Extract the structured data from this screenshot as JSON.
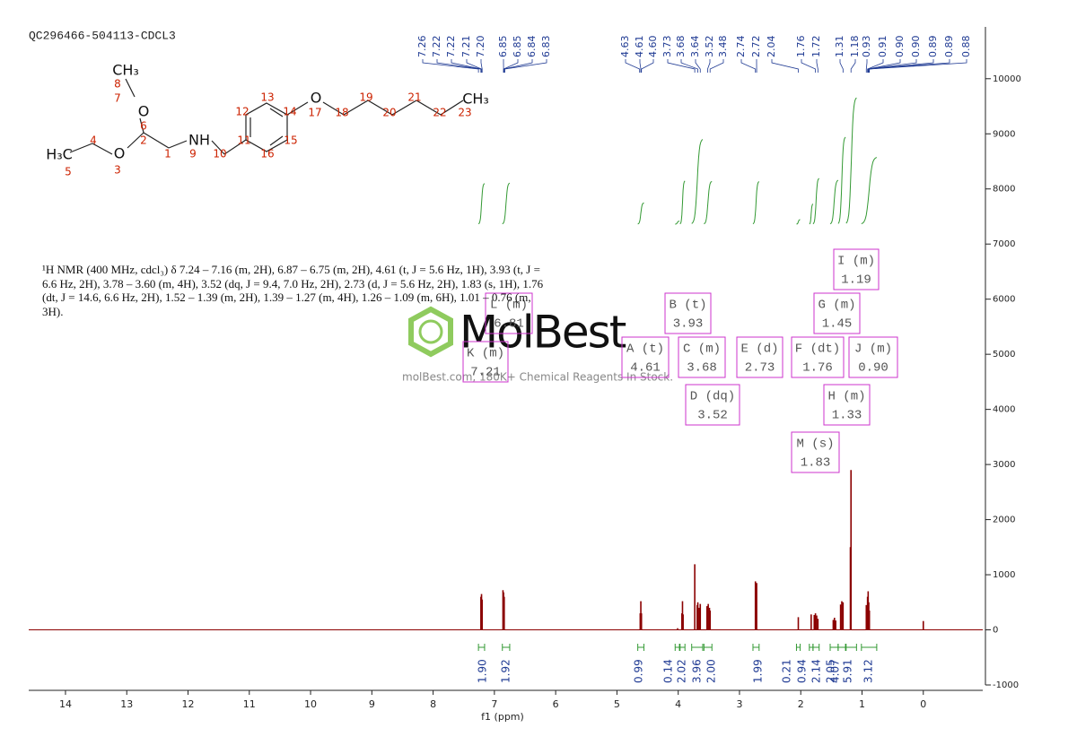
{
  "chart_data": {
    "type": "spectrum",
    "title": "QC296466-504113-CDCL3",
    "x_label": "f1 (ppm)",
    "xlim": [
      14.6,
      -0.97
    ],
    "xticks": [
      14,
      13,
      12,
      11,
      10,
      9,
      8,
      7,
      6,
      5,
      4,
      3,
      2,
      1,
      0
    ],
    "ylim": [
      -1000,
      10940
    ],
    "yticks": [
      -1000,
      0,
      1000,
      2000,
      3000,
      4000,
      5000,
      6000,
      7000,
      8000,
      9000,
      10000
    ],
    "color": "#8b0000",
    "integral_color": "#339933",
    "box_color": "#cc33cc",
    "peaks": {
      "x": [
        7.22,
        7.21,
        7.2,
        6.86,
        6.85,
        6.84,
        4.62,
        4.61,
        4.6,
        4.01,
        3.94,
        3.93,
        3.92,
        3.73,
        3.69,
        3.68,
        3.66,
        3.64,
        3.53,
        3.51,
        3.49,
        3.48,
        2.74,
        2.72,
        2.04,
        1.83,
        1.78,
        1.76,
        1.74,
        1.72,
        1.47,
        1.45,
        1.43,
        1.35,
        1.33,
        1.31,
        1.19,
        1.18,
        0.93,
        0.91,
        0.9,
        0.89,
        0.88,
        0.0
      ],
      "values": [
        600,
        650,
        550,
        720,
        680,
        600,
        300,
        520,
        300,
        30,
        300,
        520,
        280,
        1190,
        450,
        500,
        400,
        470,
        430,
        470,
        400,
        350,
        880,
        850,
        230,
        280,
        270,
        300,
        260,
        200,
        180,
        220,
        170,
        460,
        520,
        500,
        1500,
        2900,
        450,
        600,
        700,
        500,
        350,
        160
      ]
    },
    "peak_labels": [
      7.26,
      7.22,
      7.22,
      7.21,
      {
        "value": 7.2,
        "label": "7.20"
      },
      6.85,
      6.85,
      6.84,
      6.83,
      4.63,
      4.61,
      {
        "value": 4.6,
        "label": "4.60"
      },
      3.73,
      3.68,
      3.64,
      3.52,
      3.48,
      2.74,
      2.72,
      2.04,
      1.76,
      1.72,
      1.31,
      1.18,
      0.93,
      0.91,
      {
        "value": 0.9,
        "label": "0.90"
      },
      {
        "value": 0.9,
        "label": "0.90"
      },
      0.89,
      0.89,
      0.88
    ],
    "integrals": {
      "ranges": [
        [
          7.26,
          7.16
        ],
        [
          6.87,
          6.75
        ],
        [
          4.66,
          4.56
        ],
        [
          4.05,
          3.98
        ],
        [
          3.97,
          3.89
        ],
        [
          3.78,
          3.6
        ],
        [
          3.58,
          3.45
        ],
        [
          2.78,
          2.68
        ],
        [
          2.07,
          2.01
        ],
        [
          1.86,
          1.8
        ],
        [
          1.8,
          1.7
        ],
        [
          1.52,
          1.39
        ],
        [
          1.39,
          1.27
        ],
        [
          1.26,
          1.09
        ],
        [
          1.01,
          0.76
        ]
      ],
      "values": [
        1.9,
        1.92,
        0.99,
        0.14,
        2.02,
        3.96,
        2,
        1.99,
        0.21,
        0.94,
        2.14,
        2.05,
        4.07,
        5.91,
        3.12
      ],
      "value_labels": [
        "1.90",
        "1.92",
        "0.99",
        "0.14",
        "2.02",
        "3.96",
        "2.00",
        "1.99",
        "0.21",
        "0.94",
        "2.14",
        "2.05",
        "4.07",
        "5.91",
        "3.12"
      ]
    },
    "multiplets": [
      {
        "name": "K (m)",
        "shift": "7.21"
      },
      {
        "name": "L (m)",
        "shift": "6.81"
      },
      {
        "name": "A (t)",
        "shift": "4.61"
      },
      {
        "name": "B (t)",
        "shift": "3.93"
      },
      {
        "name": "C (m)",
        "shift": "3.68"
      },
      {
        "name": "D (dq)",
        "shift": "3.52"
      },
      {
        "name": "E (d)",
        "shift": "2.73"
      },
      {
        "name": "F (dt)",
        "shift": "1.76"
      },
      {
        "name": "G (m)",
        "shift": "1.45"
      },
      {
        "name": "H (m)",
        "shift": "1.33"
      },
      {
        "name": "I (m)",
        "shift": "1.19"
      },
      {
        "name": "J (m)",
        "shift": "0.90"
      },
      {
        "name": "M (s)",
        "shift": "1.83"
      }
    ],
    "description": "¹H NMR (400 MHz, cdcl₃) δ 7.24 – 7.16 (m, 2H), 6.87 – 6.75 (m, 2H), 4.61 (t, J = 5.6 Hz, 1H), 3.93 (t, J = 6.6 Hz, 2H), 3.78 – 3.60 (m, 4H), 3.52 (dq, J = 9.4, 7.0 Hz, 2H), 2.73 (d, J = 5.6 Hz, 2H), 1.83 (s, 1H), 1.76 (dt, J = 14.6, 6.6 Hz, 2H), 1.52 – 1.39 (m, 2H), 1.39 – 1.27 (m, 4H), 1.26 – 1.09 (m, 6H), 1.01 – 0.76 (m, 3H).",
    "structure": {
      "atoms": [
        "CH₃",
        "O",
        "O",
        "H₃C",
        "NH",
        "O",
        "CH₃"
      ],
      "numbers": [
        "1",
        "2",
        "3",
        "4",
        "5",
        "6",
        "7",
        "8",
        "9",
        "10",
        "11",
        "12",
        "13",
        "14",
        "15",
        "16",
        "17",
        "18",
        "19",
        "20",
        "21",
        "22",
        "23"
      ]
    },
    "watermark": {
      "logo": "MolBest",
      "text": "molBest.com, 180K+ Chemical Reagents In Stock."
    }
  }
}
